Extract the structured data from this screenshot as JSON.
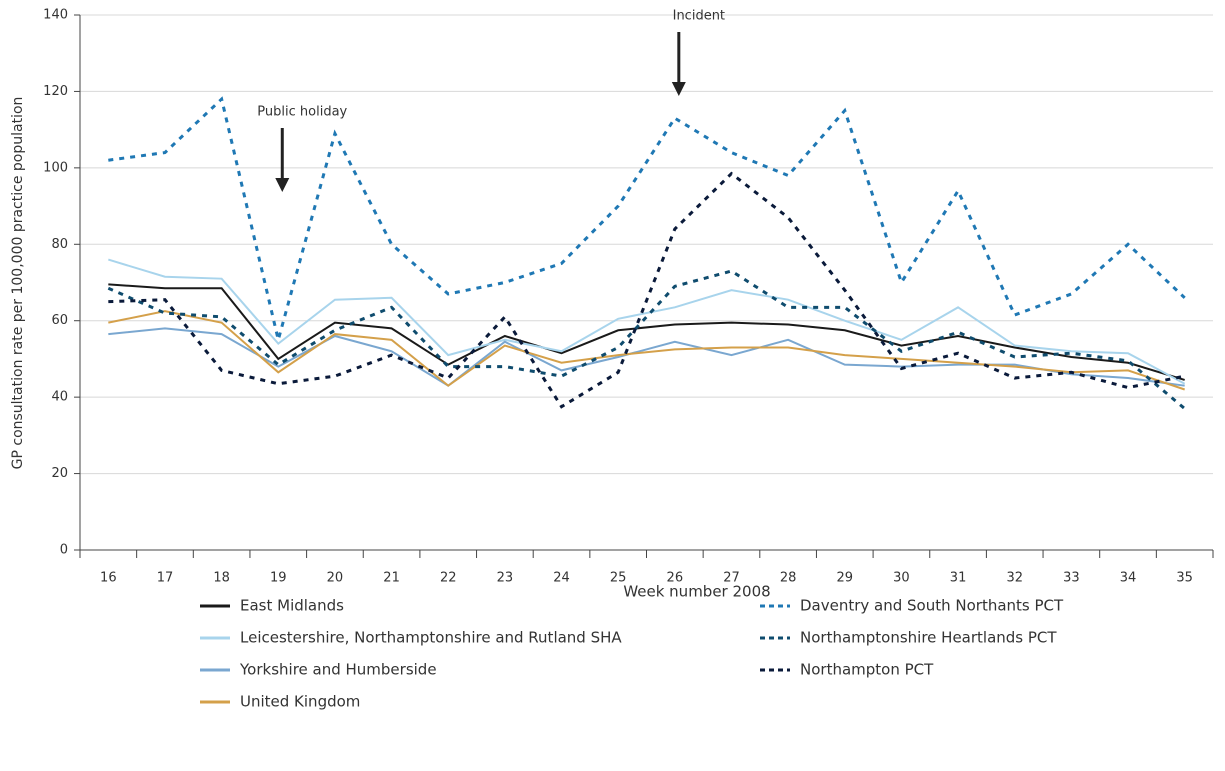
{
  "chart_data": {
    "type": "line",
    "x_label": "Week number 2008",
    "y_label": "GP consultation rate per 100,000 practice population",
    "categories": [
      "16",
      "17",
      "18",
      "19",
      "20",
      "21",
      "22",
      "23",
      "24",
      "25",
      "26",
      "27",
      "28",
      "29",
      "30",
      "31",
      "32",
      "33",
      "34",
      "35"
    ],
    "ylim": [
      0,
      140
    ],
    "yticks": [
      0,
      20,
      40,
      60,
      80,
      100,
      120,
      140
    ],
    "grid": true,
    "annotations": [
      {
        "text": "Public holiday",
        "x": "19"
      },
      {
        "text": "Incident",
        "x": "26"
      }
    ],
    "series": [
      {
        "name": "East Midlands",
        "color": "#1a1a1a",
        "style": "solid",
        "values": [
          69.5,
          68.5,
          68.5,
          50,
          59.5,
          58,
          48.5,
          56,
          51.5,
          57.5,
          59,
          59.5,
          59,
          57.5,
          53.5,
          56,
          53,
          50.5,
          49,
          44.5
        ]
      },
      {
        "name": "Leicestershire, Northamptonshire and Rutland SHA",
        "color": "#a8d4ec",
        "style": "solid",
        "values": [
          76,
          71.5,
          71,
          54,
          65.5,
          66,
          51,
          55,
          52,
          60.5,
          63.5,
          68,
          65.5,
          60,
          55,
          63.5,
          53.5,
          52,
          51.5,
          43.5
        ]
      },
      {
        "name": "Yorkshire and Humberside",
        "color": "#7aa7d0",
        "style": "solid",
        "values": [
          56.5,
          58,
          56.5,
          48,
          56,
          52,
          43,
          54.5,
          47,
          50.5,
          54.5,
          51,
          55,
          48.5,
          48,
          48.5,
          48.5,
          46,
          45,
          43
        ]
      },
      {
        "name": "United Kingdom",
        "color": "#d4a04a",
        "style": "solid",
        "values": [
          59.5,
          62.5,
          59.5,
          46.5,
          56.5,
          55,
          43,
          53.5,
          49,
          51,
          52.5,
          53,
          53,
          51,
          50,
          49,
          48,
          46.5,
          47,
          42
        ]
      },
      {
        "name": "Daventry and South Northants PCT",
        "color": "#1f78b4",
        "style": "dashed",
        "values": [
          102,
          104,
          118,
          55,
          109,
          80,
          67,
          70,
          75,
          90,
          113,
          104,
          98,
          115,
          70,
          94,
          61.5,
          67,
          80,
          66
        ]
      },
      {
        "name": "Northamptonshire Heartlands PCT",
        "color": "#0f4c6e",
        "style": "dashed",
        "values": [
          68.5,
          62,
          61,
          48.5,
          57.5,
          63.5,
          48,
          48,
          45.5,
          53,
          69,
          73,
          63.5,
          63.5,
          52,
          57,
          50.5,
          51.5,
          49.5,
          37
        ]
      },
      {
        "name": "Northampton PCT",
        "color": "#0a1a3a",
        "style": "dashed",
        "values": [
          65,
          65.5,
          47,
          43.5,
          45.5,
          51,
          45,
          61,
          37.5,
          46.5,
          84,
          98.5,
          87,
          68,
          47.5,
          51.5,
          45,
          46.5,
          42.5,
          45.5
        ]
      }
    ]
  }
}
